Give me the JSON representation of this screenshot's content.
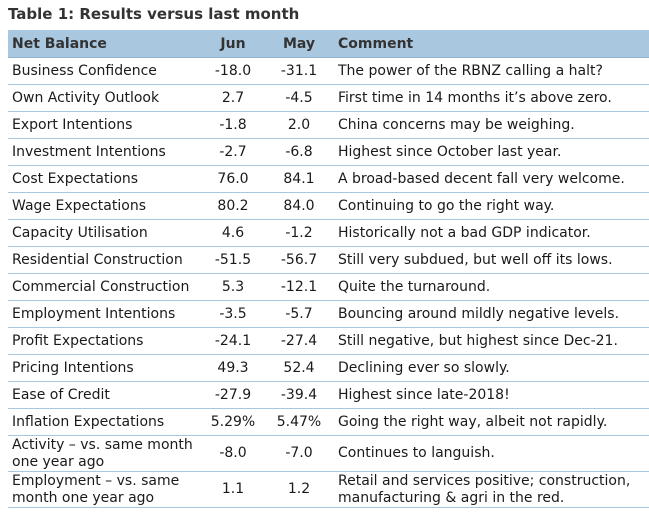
{
  "table": {
    "title": "Table 1: Results versus last month",
    "headers": {
      "label": "Net Balance",
      "jun": "Jun",
      "may": "May",
      "comment": "Comment"
    },
    "rows": [
      {
        "label": "Business Confidence",
        "jun": "-18.0",
        "may": "-31.1",
        "comment": "The power of the RBNZ calling a halt?"
      },
      {
        "label": "Own Activity Outlook",
        "jun": "2.7",
        "may": "-4.5",
        "comment": "First time in 14 months it’s above zero."
      },
      {
        "label": "Export Intentions",
        "jun": "-1.8",
        "may": "2.0",
        "comment": "China concerns may be weighing."
      },
      {
        "label": "Investment Intentions",
        "jun": "-2.7",
        "may": "-6.8",
        "comment": "Highest since October last year."
      },
      {
        "label": "Cost Expectations",
        "jun": "76.0",
        "may": "84.1",
        "comment": "A broad-based decent fall very welcome."
      },
      {
        "label": "Wage Expectations",
        "jun": "80.2",
        "may": "84.0",
        "comment": "Continuing to go the right way."
      },
      {
        "label": "Capacity Utilisation",
        "jun": "4.6",
        "may": "-1.2",
        "comment": "Historically not a bad GDP indicator."
      },
      {
        "label": "Residential Construction",
        "jun": "-51.5",
        "may": "-56.7",
        "comment": "Still very subdued, but well off its lows."
      },
      {
        "label": "Commercial Construction",
        "jun": "5.3",
        "may": "-12.1",
        "comment": "Quite the turnaround."
      },
      {
        "label": "Employment Intentions",
        "jun": "-3.5",
        "may": "-5.7",
        "comment": "Bouncing around mildly negative levels."
      },
      {
        "label": "Profit Expectations",
        "jun": "-24.1",
        "may": "-27.4",
        "comment": "Still negative, but highest since Dec-21."
      },
      {
        "label": "Pricing Intentions",
        "jun": "49.3",
        "may": "52.4",
        "comment": "Declining ever so slowly."
      },
      {
        "label": "Ease of Credit",
        "jun": "-27.9",
        "may": "-39.4",
        "comment": "Highest since late-2018!"
      },
      {
        "label": "Inflation Expectations",
        "jun": "5.29%",
        "may": "5.47%",
        "comment": "Going the right way, albeit not rapidly."
      },
      {
        "label": "Activity – vs. same month one year ago",
        "jun": "-8.0",
        "may": "-7.0",
        "comment": "Continues to languish."
      },
      {
        "label": "Employment – vs. same month one year ago",
        "jun": "1.1",
        "may": "1.2",
        "comment": "Retail and services positive; construction, manufacturing & agri in the red."
      }
    ]
  },
  "colors": {
    "header_bg": "#a9c7df",
    "row_rule": "#a9c7df",
    "title_text": "#333333"
  }
}
